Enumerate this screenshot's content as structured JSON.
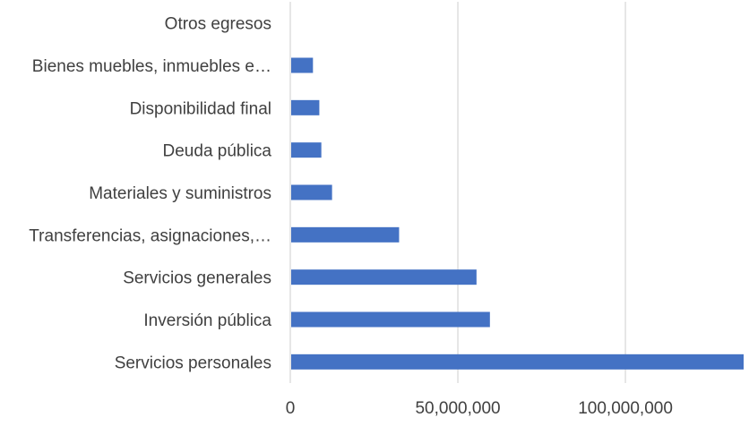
{
  "chart_data": {
    "type": "bar",
    "orientation": "horizontal",
    "title": "",
    "xlabel": "",
    "ylabel": "",
    "categories": [
      "Otros egresos",
      "Bienes muebles, inmuebles e…",
      "Disponibilidad final",
      "Deuda pública",
      "Materiales y suministros",
      "Transferencias, asignaciones,…",
      "Servicios generales",
      "Inversión pública",
      "Servicios personales"
    ],
    "values": [
      0,
      6500000,
      8400000,
      9000000,
      12200000,
      32200000,
      55300000,
      59300000,
      135000000
    ],
    "xlim": [
      0,
      135000000
    ],
    "x_ticks": [
      0,
      50000000,
      100000000
    ],
    "x_tick_labels": [
      "0",
      "50,000,000",
      "100,000,000"
    ],
    "gridlines": true,
    "legend": "none",
    "bar_color": "#4472c4"
  }
}
